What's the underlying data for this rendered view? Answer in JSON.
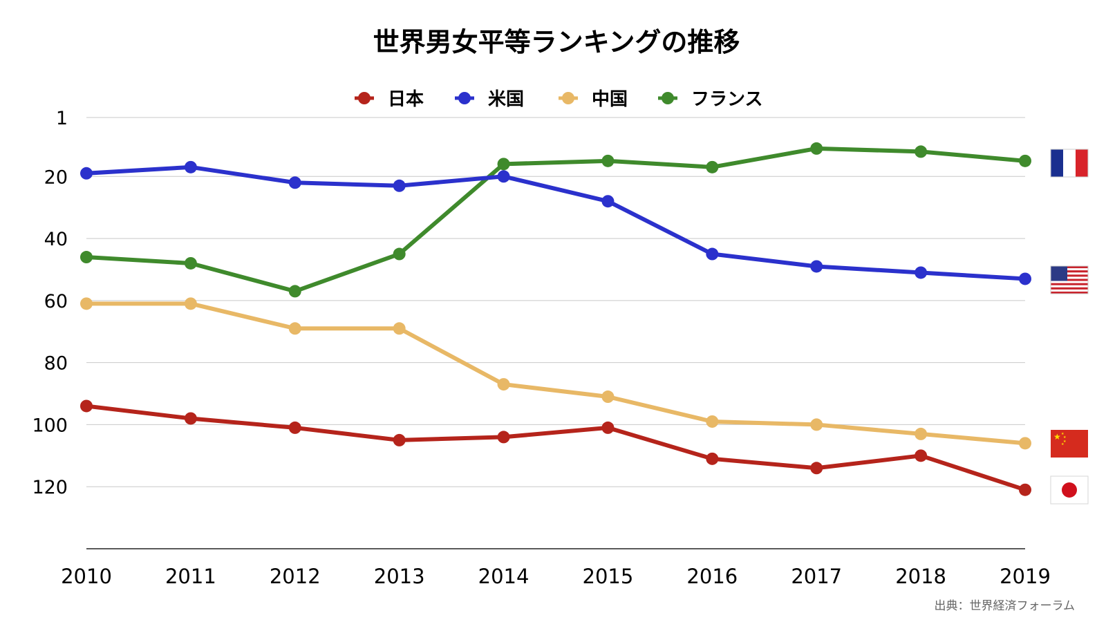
{
  "chart_data": {
    "type": "line",
    "title": "世界男女平等ランキングの推移",
    "source": "出典：世界経済フォーラム",
    "x": [
      "2010",
      "2011",
      "2012",
      "2013",
      "2014",
      "2015",
      "2016",
      "2017",
      "2018",
      "2019"
    ],
    "yticks": [
      "1",
      "20",
      "40",
      "60",
      "80",
      "100",
      "120"
    ],
    "ylim": [
      1,
      140
    ],
    "y_reversed": true,
    "grid": true,
    "legend_position": "top",
    "series": [
      {
        "name": "日本",
        "color": "#b5241b",
        "flag": "japan-flag",
        "values": [
          94,
          98,
          101,
          105,
          104,
          101,
          111,
          114,
          110,
          121
        ]
      },
      {
        "name": "米国",
        "color": "#2b31cc",
        "flag": "usa-flag",
        "values": [
          19,
          17,
          22,
          23,
          20,
          28,
          45,
          49,
          51,
          53
        ]
      },
      {
        "name": "中国",
        "color": "#e8b866",
        "flag": "china-flag",
        "values": [
          61,
          61,
          69,
          69,
          87,
          91,
          99,
          100,
          103,
          106
        ]
      },
      {
        "name": "フランス",
        "color": "#3f8a2c",
        "flag": "france-flag",
        "values": [
          46,
          48,
          57,
          45,
          16,
          15,
          17,
          11,
          12,
          15
        ]
      }
    ]
  }
}
